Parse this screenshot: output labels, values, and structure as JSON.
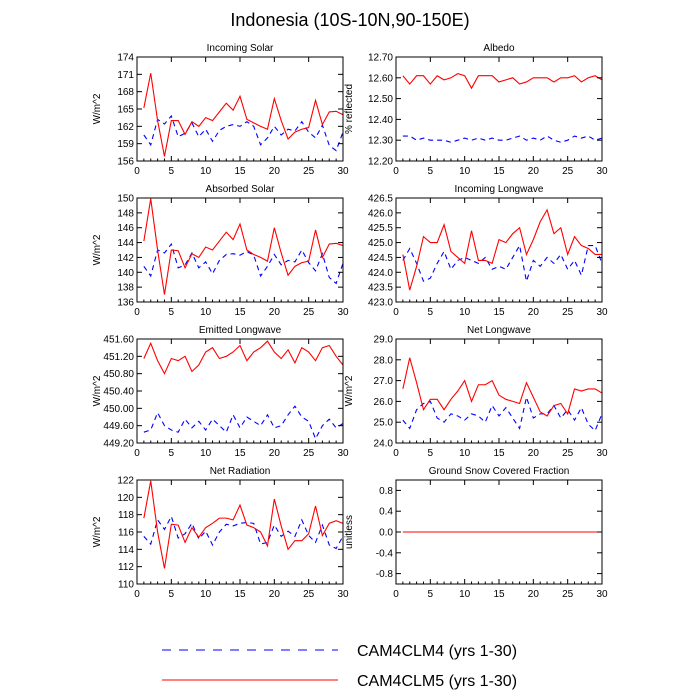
{
  "figure": {
    "title": "Indonesia (10S-10N,90-150E)",
    "legend": [
      {
        "label": "CAM4CLM4 (yrs 1-30)",
        "color": "#0000ff",
        "style": "dashed"
      },
      {
        "label": "CAM4CLM5 (yrs 1-30)",
        "color": "#ff0000",
        "style": "solid"
      }
    ]
  },
  "chart_data": [
    {
      "type": "line",
      "title": "Incoming Solar",
      "xlabel": "",
      "ylabel": "W/m^2",
      "xlim": [
        0,
        30
      ],
      "ylim": [
        156,
        174
      ],
      "xticks": [
        "0",
        "5",
        "10",
        "15",
        "20",
        "25",
        "30"
      ],
      "yticks": [
        "156",
        "159",
        "162",
        "165",
        "168",
        "171",
        "174"
      ],
      "x": [
        1,
        2,
        3,
        4,
        5,
        6,
        7,
        8,
        9,
        10,
        11,
        12,
        13,
        14,
        15,
        16,
        17,
        18,
        19,
        20,
        21,
        22,
        23,
        24,
        25,
        26,
        27,
        28,
        29,
        30
      ],
      "series": [
        {
          "name": "CAM4CLM4 (yrs 1-30)",
          "values": [
            160.5,
            158.8,
            163.2,
            162.4,
            163.8,
            160.2,
            160.8,
            162.6,
            160.2,
            161.5,
            159.4,
            161.3,
            162.0,
            162.3,
            162.0,
            162.8,
            162.0,
            158.8,
            160.0,
            162.0,
            160.5,
            161.5,
            161.2,
            162.8,
            161.0,
            160.0,
            162.2,
            158.7,
            157.8,
            161.0
          ]
        },
        {
          "name": "CAM4CLM5 (yrs 1-30)",
          "values": [
            165.2,
            171.2,
            163.0,
            156.8,
            163.0,
            163.0,
            160.6,
            162.8,
            162.0,
            163.5,
            163.0,
            164.5,
            166.0,
            164.8,
            167.2,
            163.2,
            162.6,
            162.0,
            161.5,
            166.8,
            163.0,
            159.8,
            161.0,
            161.5,
            161.8,
            166.5,
            162.3,
            164.5,
            164.6,
            164.0
          ]
        }
      ]
    },
    {
      "type": "line",
      "title": "Albedo",
      "xlabel": "",
      "ylabel": "% reflected",
      "xlim": [
        0,
        30
      ],
      "ylim": [
        12.2,
        12.7
      ],
      "xticks": [
        "0",
        "5",
        "10",
        "15",
        "20",
        "25",
        "30"
      ],
      "yticks": [
        "12.20",
        "12.30",
        "12.40",
        "12.50",
        "12.60",
        "12.70"
      ],
      "x": [
        1,
        2,
        3,
        4,
        5,
        6,
        7,
        8,
        9,
        10,
        11,
        12,
        13,
        14,
        15,
        16,
        17,
        18,
        19,
        20,
        21,
        22,
        23,
        24,
        25,
        26,
        27,
        28,
        29,
        30
      ],
      "series": [
        {
          "name": "CAM4CLM4 (yrs 1-30)",
          "values": [
            12.32,
            12.32,
            12.3,
            12.31,
            12.3,
            12.3,
            12.3,
            12.29,
            12.3,
            12.31,
            12.3,
            12.31,
            12.3,
            12.31,
            12.3,
            12.3,
            12.31,
            12.32,
            12.3,
            12.31,
            12.3,
            12.32,
            12.3,
            12.29,
            12.3,
            12.32,
            12.31,
            12.32,
            12.3,
            12.31
          ]
        },
        {
          "name": "CAM4CLM5 (yrs 1-30)",
          "values": [
            12.61,
            12.57,
            12.61,
            12.61,
            12.57,
            12.61,
            12.59,
            12.6,
            12.62,
            12.61,
            12.55,
            12.61,
            12.61,
            12.61,
            12.58,
            12.59,
            12.6,
            12.57,
            12.58,
            12.6,
            12.6,
            12.6,
            12.58,
            12.6,
            12.6,
            12.61,
            12.58,
            12.6,
            12.61,
            12.59
          ]
        }
      ]
    },
    {
      "type": "line",
      "title": "Absorbed Solar",
      "xlabel": "",
      "ylabel": "W/m^2",
      "xlim": [
        0,
        30
      ],
      "ylim": [
        136,
        150
      ],
      "xticks": [
        "0",
        "5",
        "10",
        "15",
        "20",
        "25",
        "30"
      ],
      "yticks": [
        "136",
        "138",
        "140",
        "142",
        "144",
        "146",
        "148",
        "150"
      ],
      "x": [
        1,
        2,
        3,
        4,
        5,
        6,
        7,
        8,
        9,
        10,
        11,
        12,
        13,
        14,
        15,
        16,
        17,
        18,
        19,
        20,
        21,
        22,
        23,
        24,
        25,
        26,
        27,
        28,
        29,
        30
      ],
      "series": [
        {
          "name": "CAM4CLM4 (yrs 1-30)",
          "values": [
            140.8,
            139.5,
            143.0,
            142.6,
            143.8,
            140.6,
            141.0,
            142.6,
            140.6,
            141.4,
            139.8,
            141.6,
            142.4,
            142.5,
            142.3,
            142.8,
            142.3,
            139.5,
            140.8,
            142.4,
            141.0,
            141.6,
            141.4,
            143.0,
            141.3,
            140.2,
            142.5,
            139.3,
            138.5,
            141.2
          ]
        },
        {
          "name": "CAM4CLM5 (yrs 1-30)",
          "values": [
            144.2,
            149.9,
            143.0,
            137.0,
            143.0,
            142.9,
            140.6,
            142.5,
            142.0,
            143.4,
            143.0,
            144.2,
            145.4,
            144.4,
            146.5,
            143.0,
            142.4,
            142.0,
            141.5,
            146.0,
            142.6,
            139.6,
            140.8,
            141.3,
            141.5,
            145.7,
            142.0,
            143.8,
            143.9,
            143.6
          ]
        }
      ]
    },
    {
      "type": "line",
      "title": "Incoming Longwave",
      "xlabel": "",
      "ylabel": "",
      "xlim": [
        0,
        30
      ],
      "ylim": [
        423.0,
        426.5
      ],
      "xticks": [
        "0",
        "5",
        "10",
        "15",
        "20",
        "25",
        "30"
      ],
      "yticks": [
        "423.0",
        "423.5",
        "424.0",
        "424.5",
        "425.0",
        "425.5",
        "426.0",
        "426.5"
      ],
      "x": [
        1,
        2,
        3,
        4,
        5,
        6,
        7,
        8,
        9,
        10,
        11,
        12,
        13,
        14,
        15,
        16,
        17,
        18,
        19,
        20,
        21,
        22,
        23,
        24,
        25,
        26,
        27,
        28,
        29,
        30
      ],
      "series": [
        {
          "name": "CAM4CLM4 (yrs 1-30)",
          "values": [
            424.4,
            424.8,
            424.3,
            423.7,
            423.8,
            424.3,
            424.7,
            424.1,
            424.4,
            424.5,
            424.4,
            424.3,
            424.5,
            424.1,
            424.2,
            424.1,
            424.5,
            424.9,
            423.7,
            424.4,
            424.2,
            424.5,
            424.3,
            424.6,
            424.1,
            424.4,
            423.9,
            424.9,
            424.9,
            424.3
          ]
        },
        {
          "name": "CAM4CLM5 (yrs 1-30)",
          "values": [
            424.6,
            423.4,
            424.2,
            425.2,
            425.0,
            425.0,
            425.6,
            424.7,
            424.5,
            424.3,
            425.4,
            424.4,
            424.4,
            424.3,
            425.1,
            425.0,
            425.3,
            425.5,
            424.6,
            425.1,
            425.7,
            426.1,
            425.3,
            425.5,
            424.6,
            425.2,
            424.9,
            424.8,
            424.6,
            424.6
          ]
        }
      ]
    },
    {
      "type": "line",
      "title": "Emitted Longwave",
      "xlabel": "",
      "ylabel": "W/m^2",
      "xlim": [
        0,
        30
      ],
      "ylim": [
        449.2,
        451.6
      ],
      "xticks": [
        "0",
        "5",
        "10",
        "15",
        "20",
        "25",
        "30"
      ],
      "yticks": [
        "449.20",
        "449.60",
        "450.00",
        "450.40",
        "450.80",
        "451.20",
        "451.60"
      ],
      "x": [
        1,
        2,
        3,
        4,
        5,
        6,
        7,
        8,
        9,
        10,
        11,
        12,
        13,
        14,
        15,
        16,
        17,
        18,
        19,
        20,
        21,
        22,
        23,
        24,
        25,
        26,
        27,
        28,
        29,
        30
      ],
      "series": [
        {
          "name": "CAM4CLM4 (yrs 1-30)",
          "values": [
            449.45,
            449.5,
            449.9,
            449.6,
            449.5,
            449.45,
            449.75,
            449.55,
            449.7,
            449.5,
            449.75,
            449.6,
            449.45,
            449.85,
            449.55,
            449.8,
            449.7,
            449.6,
            449.85,
            449.55,
            449.6,
            449.85,
            450.05,
            449.8,
            449.7,
            449.3,
            449.6,
            449.75,
            449.55,
            449.65
          ]
        },
        {
          "name": "CAM4CLM5 (yrs 1-30)",
          "values": [
            451.15,
            451.5,
            451.1,
            450.8,
            451.15,
            451.1,
            451.2,
            450.85,
            451.0,
            451.3,
            451.4,
            451.15,
            451.2,
            451.3,
            451.45,
            451.1,
            451.3,
            451.4,
            451.55,
            451.3,
            451.15,
            451.35,
            451.05,
            451.4,
            451.3,
            451.1,
            451.4,
            451.45,
            451.2,
            451.0
          ]
        }
      ]
    },
    {
      "type": "line",
      "title": "Net Longwave",
      "xlabel": "",
      "ylabel": "W/m^2",
      "xlim": [
        0,
        30
      ],
      "ylim": [
        24.0,
        29.0
      ],
      "xticks": [
        "0",
        "5",
        "10",
        "15",
        "20",
        "25",
        "30"
      ],
      "yticks": [
        "24.0",
        "25.0",
        "26.0",
        "27.0",
        "28.0",
        "29.0"
      ],
      "x": [
        1,
        2,
        3,
        4,
        5,
        6,
        7,
        8,
        9,
        10,
        11,
        12,
        13,
        14,
        15,
        16,
        17,
        18,
        19,
        20,
        21,
        22,
        23,
        24,
        25,
        26,
        27,
        28,
        29,
        30
      ],
      "series": [
        {
          "name": "CAM4CLM4 (yrs 1-30)",
          "values": [
            25.1,
            24.7,
            25.6,
            25.9,
            26.0,
            25.2,
            25.0,
            25.4,
            25.3,
            25.1,
            25.4,
            25.3,
            25.0,
            25.8,
            25.3,
            25.7,
            25.2,
            24.7,
            26.2,
            25.2,
            25.4,
            25.4,
            25.8,
            25.2,
            25.6,
            25.1,
            25.7,
            24.9,
            24.6,
            25.4
          ]
        },
        {
          "name": "CAM4CLM5 (yrs 1-30)",
          "values": [
            26.6,
            28.1,
            26.9,
            25.6,
            26.1,
            26.1,
            25.6,
            26.1,
            26.5,
            27.0,
            26.0,
            26.8,
            26.8,
            27.0,
            26.3,
            26.1,
            26.0,
            25.9,
            26.9,
            26.2,
            25.5,
            25.3,
            25.8,
            25.9,
            25.4,
            26.6,
            26.5,
            26.6,
            26.6,
            26.4
          ]
        }
      ]
    },
    {
      "type": "line",
      "title": "Net Radiation",
      "xlabel": "",
      "ylabel": "W/m^2",
      "xlim": [
        0,
        30
      ],
      "ylim": [
        110,
        122
      ],
      "xticks": [
        "0",
        "5",
        "10",
        "15",
        "20",
        "25",
        "30"
      ],
      "yticks": [
        "110",
        "112",
        "114",
        "116",
        "118",
        "120",
        "122"
      ],
      "x": [
        1,
        2,
        3,
        4,
        5,
        6,
        7,
        8,
        9,
        10,
        11,
        12,
        13,
        14,
        15,
        16,
        17,
        18,
        19,
        20,
        21,
        22,
        23,
        24,
        25,
        26,
        27,
        28,
        29,
        30
      ],
      "series": [
        {
          "name": "CAM4CLM4 (yrs 1-30)",
          "values": [
            115.5,
            114.6,
            117.4,
            116.3,
            117.8,
            115.3,
            115.8,
            117.0,
            115.2,
            116.1,
            114.5,
            116.0,
            116.9,
            116.7,
            117.0,
            117.1,
            117.0,
            114.6,
            114.8,
            116.8,
            115.5,
            116.1,
            115.5,
            117.4,
            115.6,
            114.8,
            116.8,
            114.5,
            114.1,
            115.5
          ]
        },
        {
          "name": "CAM4CLM5 (yrs 1-30)",
          "values": [
            117.6,
            121.9,
            116.0,
            111.8,
            116.9,
            116.8,
            114.8,
            116.5,
            115.4,
            116.5,
            117.0,
            117.6,
            117.6,
            117.4,
            119.1,
            116.8,
            116.5,
            116.0,
            114.4,
            119.8,
            116.7,
            114.0,
            115.0,
            115.0,
            115.8,
            119.0,
            115.6,
            117.0,
            117.3,
            117.0
          ]
        }
      ]
    },
    {
      "type": "line",
      "title": "Ground Snow Covered Fraction",
      "xlabel": "",
      "ylabel": "unitless",
      "xlim": [
        0,
        30
      ],
      "ylim": [
        -1.0,
        1.0
      ],
      "xticks": [
        "0",
        "5",
        "10",
        "15",
        "20",
        "25",
        "30"
      ],
      "yticks": [
        "-0.8",
        "-0.4",
        "0.0",
        "0.4",
        "0.8"
      ],
      "x": [
        1,
        2,
        3,
        4,
        5,
        6,
        7,
        8,
        9,
        10,
        11,
        12,
        13,
        14,
        15,
        16,
        17,
        18,
        19,
        20,
        21,
        22,
        23,
        24,
        25,
        26,
        27,
        28,
        29,
        30
      ],
      "series": [
        {
          "name": "CAM4CLM4 (yrs 1-30)",
          "values": [
            0,
            0,
            0,
            0,
            0,
            0,
            0,
            0,
            0,
            0,
            0,
            0,
            0,
            0,
            0,
            0,
            0,
            0,
            0,
            0,
            0,
            0,
            0,
            0,
            0,
            0,
            0,
            0,
            0,
            0
          ]
        },
        {
          "name": "CAM4CLM5 (yrs 1-30)",
          "values": [
            0,
            0,
            0,
            0,
            0,
            0,
            0,
            0,
            0,
            0,
            0,
            0,
            0,
            0,
            0,
            0,
            0,
            0,
            0,
            0,
            0,
            0,
            0,
            0,
            0,
            0,
            0,
            0,
            0,
            0
          ]
        }
      ]
    }
  ]
}
